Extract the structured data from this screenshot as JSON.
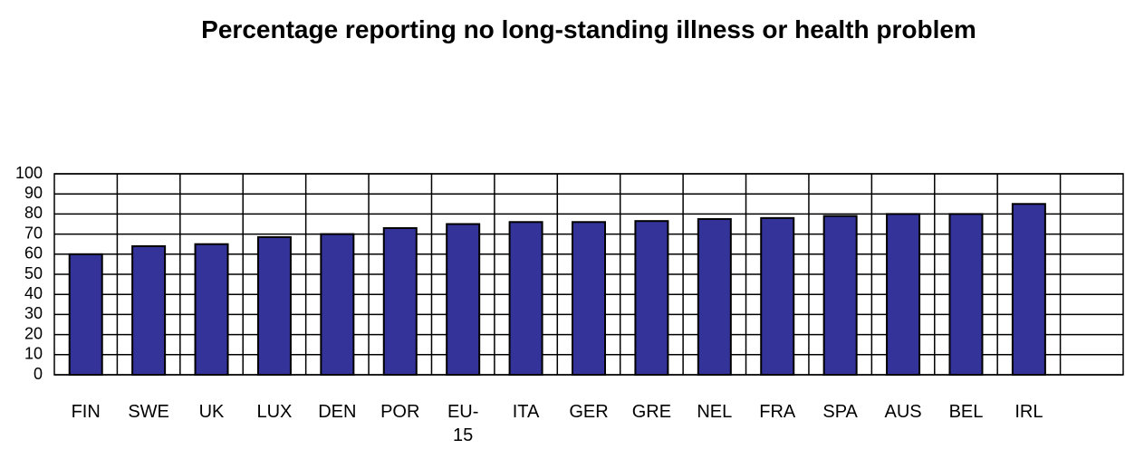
{
  "chart_data": {
    "type": "bar",
    "title": "Percentage reporting no long-standing illness or health problem",
    "categories": [
      "FIN",
      "SWE",
      "UK",
      "LUX",
      "DEN",
      "POR",
      "EU-15",
      "ITA",
      "GER",
      "GRE",
      "NEL",
      "FRA",
      "SPA",
      "AUS",
      "BEL",
      "IRL",
      null
    ],
    "values": [
      60,
      64,
      65,
      68.5,
      70,
      73,
      75,
      76,
      76,
      76.5,
      77.5,
      78,
      79,
      80,
      80,
      85,
      null
    ],
    "color": "#333399",
    "ylim": [
      0,
      100
    ],
    "yticks": [
      0,
      10,
      20,
      30,
      40,
      50,
      60,
      70,
      80,
      90,
      100
    ],
    "grid": true
  }
}
